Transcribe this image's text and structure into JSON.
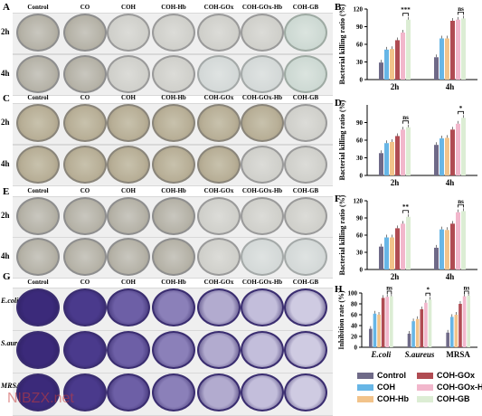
{
  "panel_letters": [
    "A",
    "B",
    "C",
    "D",
    "E",
    "F",
    "G",
    "H"
  ],
  "columns": [
    "Control",
    "CO",
    "COH",
    "COH-Hb",
    "COH-GOx",
    "COH-GOx-Hb",
    "COH-GB"
  ],
  "time_rows": [
    "2h",
    "4h"
  ],
  "g_rows": [
    "E.coli",
    "S.aureus",
    "MRSA"
  ],
  "watermark": "NIBZX.net",
  "colors": {
    "Control": "#6f6a88",
    "COH": "#67b6e6",
    "COH-Hb": "#f2c38a",
    "COH-GOx": "#b04b52",
    "COH-GOx-Hb": "#f2b7cc",
    "COH-GB": "#dcedd4"
  },
  "legend": [
    "Control",
    "COH-GOx",
    "COH",
    "COH-GOx-Hb",
    "COH-Hb",
    "COH-GB"
  ],
  "chart_data": [
    {
      "id": "B",
      "type": "bar",
      "ylabel": "Bacterial killing ratio (%)",
      "ylim": [
        0,
        120
      ],
      "yticks": [
        0,
        30,
        60,
        90,
        120
      ],
      "categories": [
        "2h",
        "4h"
      ],
      "series": [
        {
          "name": "Control",
          "values": [
            29,
            38
          ]
        },
        {
          "name": "COH",
          "values": [
            51,
            70
          ]
        },
        {
          "name": "COH-Hb",
          "values": [
            52,
            70
          ]
        },
        {
          "name": "COH-GOx",
          "values": [
            67,
            100
          ]
        },
        {
          "name": "COH-GOx-Hb",
          "values": [
            80,
            102
          ]
        },
        {
          "name": "COH-GB",
          "values": [
            102,
            104
          ]
        }
      ],
      "significance": [
        {
          "group": 0,
          "from": 4,
          "to": 5,
          "label": "***"
        },
        {
          "group": 1,
          "from": 4,
          "to": 5,
          "label": "ns"
        }
      ]
    },
    {
      "id": "D",
      "type": "bar",
      "ylabel": "Bacterial killing ratio (%)",
      "ylim": [
        0,
        120
      ],
      "yticks": [
        0,
        30,
        60,
        90
      ],
      "categories": [
        "2h",
        "4h"
      ],
      "series": [
        {
          "name": "Control",
          "values": [
            38,
            52
          ]
        },
        {
          "name": "COH",
          "values": [
            55,
            63
          ]
        },
        {
          "name": "COH-Hb",
          "values": [
            57,
            64
          ]
        },
        {
          "name": "COH-GOx",
          "values": [
            67,
            78
          ]
        },
        {
          "name": "COH-GOx-Hb",
          "values": [
            78,
            88
          ]
        },
        {
          "name": "COH-GB",
          "values": [
            82,
            98
          ]
        }
      ],
      "significance": [
        {
          "group": 0,
          "from": 4,
          "to": 5,
          "label": "ns"
        },
        {
          "group": 1,
          "from": 4,
          "to": 5,
          "label": "*"
        }
      ]
    },
    {
      "id": "F",
      "type": "bar",
      "ylabel": "Bacterial killing ratio (%)",
      "ylim": [
        0,
        120
      ],
      "yticks": [
        0,
        30,
        60,
        90,
        120
      ],
      "categories": [
        "2h",
        "4h"
      ],
      "series": [
        {
          "name": "Control",
          "values": [
            40,
            38
          ]
        },
        {
          "name": "COH",
          "values": [
            56,
            70
          ]
        },
        {
          "name": "COH-Hb",
          "values": [
            56,
            69
          ]
        },
        {
          "name": "COH-GOx",
          "values": [
            72,
            80
          ]
        },
        {
          "name": "COH-GOx-Hb",
          "values": [
            80,
            100
          ]
        },
        {
          "name": "COH-GB",
          "values": [
            92,
            102
          ]
        }
      ],
      "significance": [
        {
          "group": 0,
          "from": 4,
          "to": 5,
          "label": "**"
        },
        {
          "group": 1,
          "from": 4,
          "to": 5,
          "label": "ns"
        }
      ]
    },
    {
      "id": "H",
      "type": "bar",
      "ylabel": "Inhibition rate (%)",
      "ylim": [
        0,
        100
      ],
      "yticks": [
        0,
        20,
        40,
        60,
        80,
        100
      ],
      "categories": [
        "E.coli",
        "S.aureus",
        "MRSA"
      ],
      "series": [
        {
          "name": "Control",
          "values": [
            34,
            25,
            27
          ]
        },
        {
          "name": "COH",
          "values": [
            62,
            48,
            56
          ]
        },
        {
          "name": "COH-Hb",
          "values": [
            60,
            52,
            60
          ]
        },
        {
          "name": "COH-GOx",
          "values": [
            91,
            70,
            80
          ]
        },
        {
          "name": "COH-GOx-Hb",
          "values": [
            93,
            82,
            94
          ]
        },
        {
          "name": "COH-GB",
          "values": [
            94,
            88,
            95
          ]
        }
      ],
      "significance": [
        {
          "group": 0,
          "from": 4,
          "to": 5,
          "label": "ns"
        },
        {
          "group": 1,
          "from": 4,
          "to": 5,
          "label": "*"
        },
        {
          "group": 2,
          "from": 4,
          "to": 5,
          "label": "ns"
        }
      ]
    }
  ]
}
